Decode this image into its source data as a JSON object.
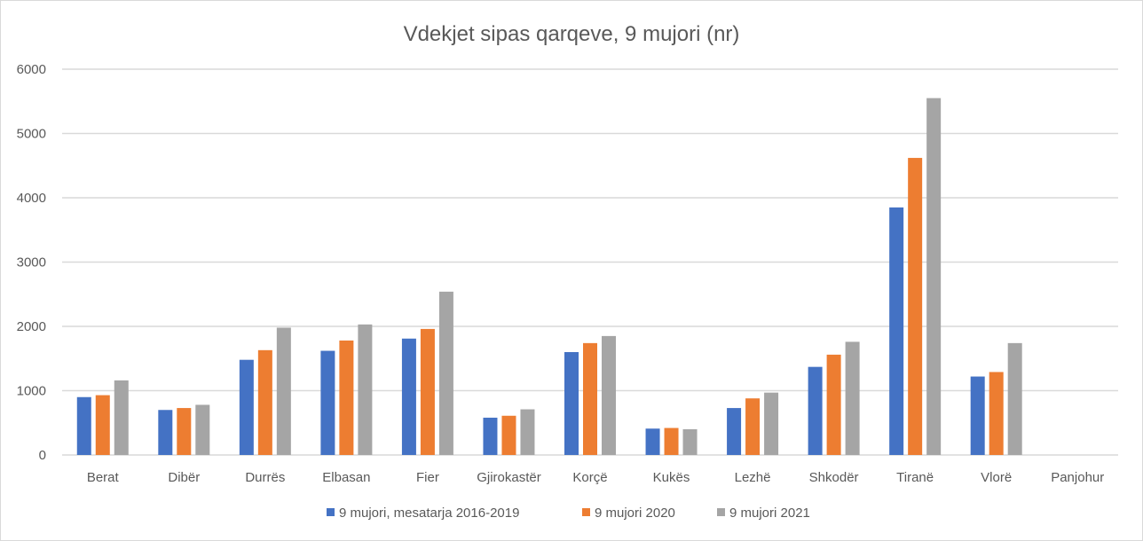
{
  "chart_data": {
    "type": "bar",
    "title": "Vdekjet sipas qarqeve, 9 mujori (nr)",
    "xlabel": "",
    "ylabel": "",
    "ylim": [
      0,
      6000
    ],
    "yticks": [
      "0",
      "1000",
      "2000",
      "3000",
      "4000",
      "5000",
      "6000"
    ],
    "grid": true,
    "legend_position": "bottom",
    "categories": [
      "Berat",
      "Dibër",
      "Durrës",
      "Elbasan",
      "Fier",
      "Gjirokastër",
      "Korçë",
      "Kukës",
      "Lezhë",
      "Shkodër",
      "Tiranë",
      "Vlorë",
      "Panjohur"
    ],
    "series": [
      {
        "name": "9 mujori, mesatarja 2016-2019",
        "color": "#4472c4",
        "values": [
          900,
          700,
          1480,
          1620,
          1810,
          580,
          1600,
          410,
          730,
          1370,
          3850,
          1220,
          0
        ]
      },
      {
        "name": "9 mujori 2020",
        "color": "#ed7d31",
        "values": [
          930,
          730,
          1630,
          1780,
          1960,
          610,
          1740,
          420,
          880,
          1560,
          4620,
          1290,
          0
        ]
      },
      {
        "name": "9 mujori 2021",
        "color": "#a5a5a5",
        "values": [
          1160,
          780,
          1980,
          2030,
          2540,
          710,
          1850,
          400,
          970,
          1760,
          5550,
          1740,
          0
        ]
      }
    ]
  }
}
